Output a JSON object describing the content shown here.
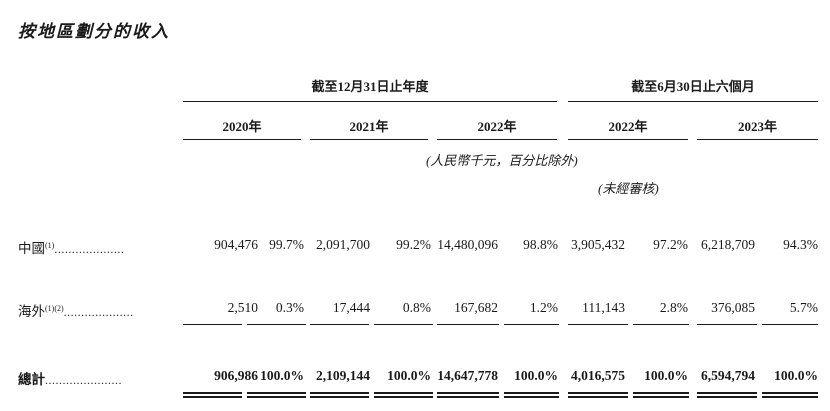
{
  "title": "按地區劃分的收入",
  "group_headers": {
    "year_end": "截至12月31日止年度",
    "six_month": "截至6月30日止六個月"
  },
  "years": [
    "2020年",
    "2021年",
    "2022年",
    "2022年",
    "2023年"
  ],
  "unit_note": "(人民幣千元，百分比除外)",
  "unaudited_note": "(未經審核)",
  "rows": [
    {
      "label": "中國",
      "note": "(1)",
      "leader": "....................",
      "cells": [
        "904,476",
        "99.7%",
        "2,091,700",
        "99.2%",
        "14,480,096",
        "98.8%",
        "3,905,432",
        "97.2%",
        "6,218,709",
        "94.3%"
      ]
    },
    {
      "label": "海外",
      "note": "(1)(2)",
      "leader": "....................",
      "cells": [
        "2,510",
        "0.3%",
        "17,444",
        "0.8%",
        "167,682",
        "1.2%",
        "111,143",
        "2.8%",
        "376,085",
        "5.7%"
      ]
    },
    {
      "label": "總計",
      "note": "",
      "leader": "......................",
      "cells": [
        "906,986",
        "100.0%",
        "2,109,144",
        "100.0%",
        "14,647,778",
        "100.0%",
        "4,016,575",
        "100.0%",
        "6,594,794",
        "100.0%"
      ]
    }
  ]
}
